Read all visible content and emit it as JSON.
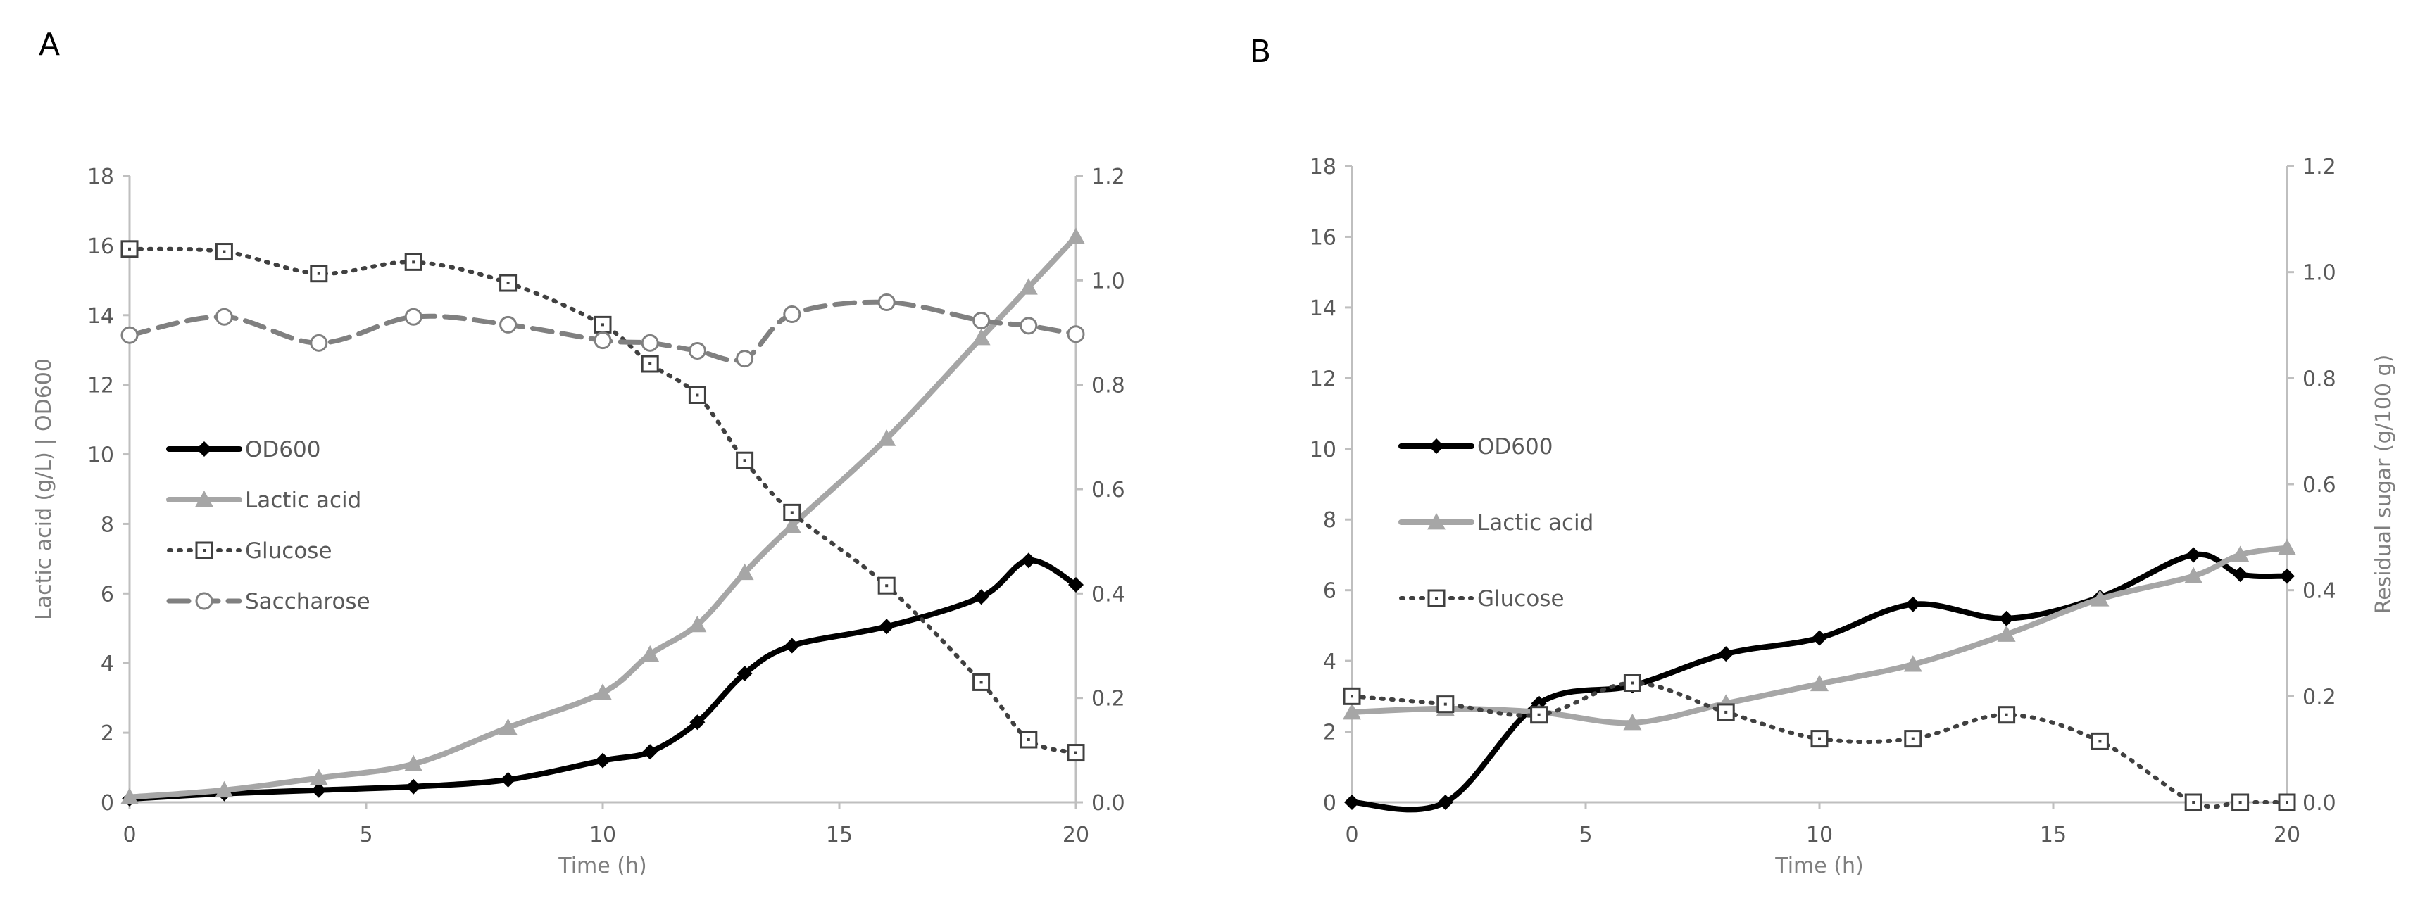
{
  "chart_data": [
    {
      "panel": "A",
      "type": "line",
      "xlabel": "Time (h)",
      "ylabel": "Lactic acid (g/L) | OD600",
      "ylabel2": "",
      "xlim": [
        0,
        20
      ],
      "ylim": [
        0,
        18
      ],
      "y2lim": [
        0,
        1.2
      ],
      "xticks": [
        "0",
        "5",
        "10",
        "15",
        "20"
      ],
      "yticks": [
        "0",
        "2",
        "4",
        "6",
        "8",
        "10",
        "12",
        "14",
        "16",
        "18"
      ],
      "y2ticks": [
        "0.0",
        "0.2",
        "0.4",
        "0.6",
        "0.8",
        "1.0",
        "1.2"
      ],
      "grid": false,
      "legend_position": "left-middle",
      "series": [
        {
          "name": "OD600",
          "axis": "left",
          "color": "#000000",
          "marker": "diamond",
          "style": "solid",
          "x": [
            0,
            2,
            4,
            6,
            8,
            10,
            11,
            12,
            13,
            14,
            16,
            18,
            19,
            20
          ],
          "y": [
            0.1,
            0.25,
            0.35,
            0.45,
            0.65,
            1.2,
            1.45,
            2.3,
            3.7,
            4.5,
            5.05,
            5.9,
            6.95,
            6.25
          ]
        },
        {
          "name": "Lactic acid",
          "axis": "left",
          "color": "#a6a6a6",
          "marker": "triangle",
          "style": "solid",
          "x": [
            0,
            2,
            4,
            6,
            8,
            10,
            11,
            12,
            13,
            14,
            16,
            18,
            19,
            20
          ],
          "y": [
            0.15,
            0.35,
            0.7,
            1.1,
            2.15,
            3.15,
            4.25,
            5.1,
            6.6,
            7.95,
            10.45,
            13.35,
            14.8,
            16.25
          ]
        },
        {
          "name": "Glucose",
          "axis": "right",
          "color": "#404040",
          "marker": "dotted-square",
          "style": "dotted",
          "x": [
            0,
            2,
            4,
            6,
            8,
            10,
            11,
            12,
            13,
            14,
            16,
            18,
            19,
            20
          ],
          "y": [
            1.06,
            1.055,
            1.013,
            1.035,
            0.995,
            0.915,
            0.84,
            0.78,
            0.655,
            0.555,
            0.415,
            0.23,
            0.12,
            0.095
          ]
        },
        {
          "name": "Saccharose",
          "axis": "right",
          "color": "#808080",
          "marker": "circle",
          "style": "dashed",
          "x": [
            0,
            2,
            4,
            6,
            8,
            10,
            11,
            12,
            13,
            14,
            16,
            18,
            19,
            20
          ],
          "y": [
            0.895,
            0.93,
            0.88,
            0.93,
            0.915,
            0.885,
            0.88,
            0.865,
            0.85,
            0.935,
            0.958,
            0.923,
            0.913,
            0.897
          ]
        }
      ]
    },
    {
      "panel": "B",
      "type": "line",
      "xlabel": "Time (h)",
      "ylabel": "",
      "ylabel2": "Residual sugar (g/100 g)",
      "xlim": [
        0,
        20
      ],
      "ylim": [
        0,
        18
      ],
      "y2lim": [
        0,
        1.2
      ],
      "xticks": [
        "0",
        "5",
        "10",
        "15",
        "20"
      ],
      "yticks": [
        "0",
        "2",
        "4",
        "6",
        "8",
        "10",
        "12",
        "14",
        "16",
        "18"
      ],
      "y2ticks": [
        "0.0",
        "0.2",
        "0.4",
        "0.6",
        "0.8",
        "1.0",
        "1.2"
      ],
      "grid": false,
      "legend_position": "left-middle",
      "series": [
        {
          "name": "OD600",
          "axis": "left",
          "color": "#000000",
          "marker": "diamond",
          "style": "solid",
          "x": [
            0,
            2,
            4,
            6,
            8,
            10,
            12,
            14,
            16,
            18,
            19,
            20
          ],
          "y": [
            0,
            0,
            2.8,
            3.3,
            4.2,
            4.65,
            5.6,
            5.2,
            5.8,
            7.0,
            6.45,
            6.4
          ]
        },
        {
          "name": "Lactic acid",
          "axis": "left",
          "color": "#a6a6a6",
          "marker": "triangle",
          "style": "solid",
          "x": [
            0,
            2,
            4,
            6,
            8,
            10,
            12,
            14,
            16,
            18,
            19,
            20
          ],
          "y": [
            2.55,
            2.65,
            2.55,
            2.25,
            2.8,
            3.35,
            3.9,
            4.75,
            5.75,
            6.4,
            7.0,
            7.2
          ]
        },
        {
          "name": "Glucose",
          "axis": "right",
          "color": "#404040",
          "marker": "dotted-square",
          "style": "dotted",
          "x": [
            0,
            2,
            4,
            6,
            8,
            10,
            12,
            14,
            16,
            18,
            19,
            20
          ],
          "y": [
            0.2,
            0.185,
            0.165,
            0.225,
            0.17,
            0.12,
            0.12,
            0.165,
            0.115,
            0,
            0,
            0
          ]
        }
      ]
    }
  ]
}
